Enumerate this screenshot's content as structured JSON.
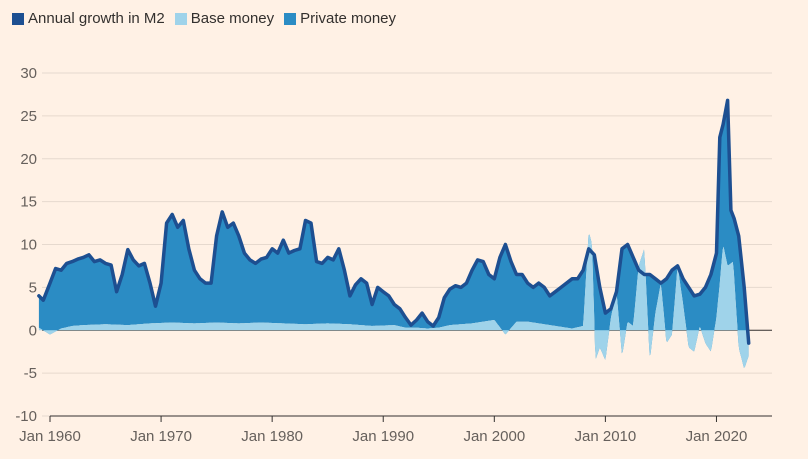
{
  "colors": {
    "background": "#fff1e5",
    "grid": "#e6d9ce",
    "axis": "#33302e",
    "m2": "#1d4f91",
    "base": "#9fd3ea",
    "private": "#2b8cc4"
  },
  "legend": [
    {
      "label": "Annual growth in M2",
      "color": "#1d4f91"
    },
    {
      "label": "Base money",
      "color": "#9fd3ea"
    },
    {
      "label": "Private money",
      "color": "#2b8cc4"
    }
  ],
  "chart_data": {
    "type": "area",
    "title": "",
    "xlabel": "",
    "ylabel": "",
    "ylim": [
      -10,
      30
    ],
    "xlim": [
      1960,
      2025
    ],
    "yticks": [
      -10,
      -5,
      0,
      5,
      10,
      15,
      20,
      25,
      30
    ],
    "xticks": [
      {
        "value": 1960,
        "label": "Jan 1960"
      },
      {
        "value": 1970,
        "label": "Jan 1970"
      },
      {
        "value": 1980,
        "label": "Jan 1980"
      },
      {
        "value": 1990,
        "label": "Jan 1990"
      },
      {
        "value": 2000,
        "label": "Jan 2000"
      },
      {
        "value": 2010,
        "label": "Jan 2010"
      },
      {
        "value": 2020,
        "label": "Jan 2020"
      }
    ],
    "grid": true,
    "legend_position": "top-left",
    "series": [
      {
        "name": "Annual growth in M2",
        "kind": "line",
        "x": [
          1959.0,
          1959.4,
          1960.0,
          1960.5,
          1961.0,
          1961.5,
          1962.0,
          1962.5,
          1963.0,
          1963.5,
          1964.0,
          1964.5,
          1965.0,
          1965.5,
          1966.0,
          1966.5,
          1967.0,
          1967.5,
          1968.0,
          1968.5,
          1969.0,
          1969.5,
          1970.0,
          1970.5,
          1971.0,
          1971.5,
          1972.0,
          1972.5,
          1973.0,
          1973.5,
          1974.0,
          1974.5,
          1975.0,
          1975.5,
          1976.0,
          1976.5,
          1977.0,
          1977.5,
          1978.0,
          1978.5,
          1979.0,
          1979.5,
          1980.0,
          1980.5,
          1981.0,
          1981.5,
          1982.0,
          1982.5,
          1983.0,
          1983.5,
          1984.0,
          1984.5,
          1985.0,
          1985.5,
          1986.0,
          1986.5,
          1987.0,
          1987.5,
          1988.0,
          1988.5,
          1989.0,
          1989.5,
          1990.0,
          1990.5,
          1991.0,
          1991.5,
          1992.0,
          1992.5,
          1993.0,
          1993.5,
          1994.0,
          1994.5,
          1995.0,
          1995.5,
          1996.0,
          1996.5,
          1997.0,
          1997.5,
          1998.0,
          1998.5,
          1999.0,
          1999.5,
          2000.0,
          2000.5,
          2001.0,
          2001.5,
          2002.0,
          2002.5,
          2003.0,
          2003.5,
          2004.0,
          2004.5,
          2005.0,
          2005.5,
          2006.0,
          2006.5,
          2007.0,
          2007.5,
          2008.0,
          2008.5,
          2009.0,
          2009.5,
          2010.0,
          2010.5,
          2011.0,
          2011.5,
          2012.0,
          2012.5,
          2013.0,
          2013.5,
          2014.0,
          2014.5,
          2015.0,
          2015.5,
          2016.0,
          2016.5,
          2017.0,
          2017.5,
          2018.0,
          2018.5,
          2019.0,
          2019.5,
          2020.0,
          2020.3,
          2020.6,
          2021.0,
          2021.3,
          2021.6,
          2022.0,
          2022.5,
          2022.9
        ],
        "values": [
          4.0,
          3.5,
          5.5,
          7.2,
          7.0,
          7.8,
          8.0,
          8.3,
          8.5,
          8.8,
          8.0,
          8.2,
          7.8,
          7.6,
          4.5,
          6.5,
          9.4,
          8.2,
          7.5,
          7.8,
          5.5,
          2.8,
          5.5,
          12.5,
          13.5,
          12.0,
          12.8,
          9.5,
          7.0,
          6.0,
          5.5,
          5.5,
          11.0,
          13.8,
          12.0,
          12.5,
          11.0,
          9.0,
          8.2,
          7.8,
          8.3,
          8.5,
          9.5,
          9.0,
          10.5,
          9.0,
          9.3,
          9.5,
          12.8,
          12.5,
          8.0,
          7.8,
          8.5,
          8.2,
          9.5,
          7.0,
          4.0,
          5.3,
          6.0,
          5.5,
          3.0,
          5.0,
          4.5,
          4.0,
          3.0,
          2.5,
          1.5,
          0.6,
          1.2,
          2.0,
          1.0,
          0.5,
          1.5,
          3.8,
          4.8,
          5.2,
          5.0,
          5.5,
          7.0,
          8.2,
          8.0,
          6.5,
          6.0,
          8.5,
          10.0,
          8.0,
          6.5,
          6.5,
          5.5,
          5.0,
          5.5,
          5.0,
          4.0,
          4.5,
          5.0,
          5.5,
          6.0,
          6.0,
          7.0,
          9.5,
          8.8,
          5.0,
          2.0,
          2.5,
          4.5,
          9.5,
          10.0,
          8.5,
          7.0,
          6.5,
          6.5,
          6.0,
          5.5,
          6.0,
          7.0,
          7.5,
          6.0,
          5.0,
          4.0,
          4.2,
          5.0,
          6.5,
          9.0,
          22.5,
          24.0,
          26.8,
          14.0,
          13.0,
          11.0,
          5.0,
          -1.5
        ]
      },
      {
        "name": "Base money",
        "kind": "area",
        "x": [
          1959.0,
          1960.0,
          1961.0,
          1962.0,
          1963.0,
          1965.0,
          1967.0,
          1969.0,
          1971.0,
          1973.0,
          1975.0,
          1977.0,
          1979.0,
          1981.0,
          1983.0,
          1985.0,
          1987.0,
          1989.0,
          1991.0,
          1992.0,
          1993.0,
          1994.0,
          1995.0,
          1996.0,
          1998.0,
          2000.0,
          2001.0,
          2002.0,
          2003.0,
          2005.0,
          2007.0,
          2008.0,
          2008.5,
          2008.8,
          2009.1,
          2009.5,
          2010.0,
          2010.5,
          2011.0,
          2011.5,
          2012.0,
          2012.5,
          2013.0,
          2013.5,
          2014.0,
          2014.5,
          2015.0,
          2015.5,
          2016.0,
          2016.5,
          2017.0,
          2017.5,
          2018.0,
          2018.5,
          2019.0,
          2019.5,
          2020.0,
          2020.3,
          2020.6,
          2021.0,
          2021.5,
          2022.0,
          2022.5,
          2022.9
        ],
        "values": [
          0.3,
          -0.5,
          0.2,
          0.5,
          0.6,
          0.7,
          0.6,
          0.8,
          0.9,
          0.8,
          0.9,
          0.8,
          0.9,
          0.8,
          0.7,
          0.8,
          0.7,
          0.5,
          0.6,
          0.3,
          0.3,
          0.2,
          0.3,
          0.6,
          0.8,
          1.2,
          -0.5,
          1.0,
          1.0,
          0.6,
          0.2,
          0.5,
          11.5,
          10.0,
          -3.5,
          -2.0,
          -3.5,
          1.5,
          4.5,
          -3.0,
          1.0,
          0.5,
          7.5,
          9.5,
          -3.5,
          2.0,
          5.5,
          -1.5,
          -0.5,
          7.5,
          3.0,
          -2.0,
          -2.5,
          0.5,
          -1.5,
          -2.5,
          1.5,
          5.5,
          10.0,
          7.5,
          8.0,
          -2.0,
          -4.5,
          -3.0
        ]
      },
      {
        "name": "Private money",
        "kind": "area",
        "stacked_on": "Base money"
      }
    ]
  }
}
